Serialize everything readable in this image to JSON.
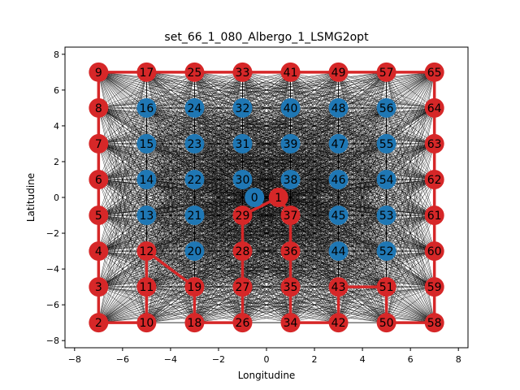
{
  "chart_data": {
    "type": "scatter",
    "title": "set_66_1_080_Albergo_1_LSMG2opt",
    "xlabel": "Longitudine",
    "ylabel": "Latitudine",
    "xlim": [
      -8.4,
      8.4
    ],
    "ylim": [
      -8.4,
      8.4
    ],
    "xticks": [
      -8,
      -6,
      -4,
      -2,
      0,
      2,
      4,
      6,
      8
    ],
    "yticks": [
      -8,
      -6,
      -4,
      -2,
      0,
      2,
      4,
      6,
      8
    ],
    "grid": false,
    "colors": {
      "unvisited_node": "#1f77b4",
      "route": "#d62728",
      "complete_edges": "#000000"
    },
    "nodes": [
      {
        "id": 0,
        "x": -0.5,
        "y": 0
      },
      {
        "id": 1,
        "x": 0.5,
        "y": 0
      },
      {
        "id": 2,
        "x": -7,
        "y": -7
      },
      {
        "id": 3,
        "x": -7,
        "y": -5
      },
      {
        "id": 4,
        "x": -7,
        "y": -3
      },
      {
        "id": 5,
        "x": -7,
        "y": -1
      },
      {
        "id": 6,
        "x": -7,
        "y": 1
      },
      {
        "id": 7,
        "x": -7,
        "y": 3
      },
      {
        "id": 8,
        "x": -7,
        "y": 5
      },
      {
        "id": 9,
        "x": -7,
        "y": 7
      },
      {
        "id": 10,
        "x": -5,
        "y": -7
      },
      {
        "id": 11,
        "x": -5,
        "y": -5
      },
      {
        "id": 12,
        "x": -5,
        "y": -3
      },
      {
        "id": 13,
        "x": -5,
        "y": -1
      },
      {
        "id": 14,
        "x": -5,
        "y": 1
      },
      {
        "id": 15,
        "x": -5,
        "y": 3
      },
      {
        "id": 16,
        "x": -5,
        "y": 5
      },
      {
        "id": 17,
        "x": -5,
        "y": 7
      },
      {
        "id": 18,
        "x": -3,
        "y": -7
      },
      {
        "id": 19,
        "x": -3,
        "y": -5
      },
      {
        "id": 20,
        "x": -3,
        "y": -3
      },
      {
        "id": 21,
        "x": -3,
        "y": -1
      },
      {
        "id": 22,
        "x": -3,
        "y": 1
      },
      {
        "id": 23,
        "x": -3,
        "y": 3
      },
      {
        "id": 24,
        "x": -3,
        "y": 5
      },
      {
        "id": 25,
        "x": -3,
        "y": 7
      },
      {
        "id": 26,
        "x": -1,
        "y": -7
      },
      {
        "id": 27,
        "x": -1,
        "y": -5
      },
      {
        "id": 28,
        "x": -1,
        "y": -3
      },
      {
        "id": 29,
        "x": -1,
        "y": -1
      },
      {
        "id": 30,
        "x": -1,
        "y": 1
      },
      {
        "id": 31,
        "x": -1,
        "y": 3
      },
      {
        "id": 32,
        "x": -1,
        "y": 5
      },
      {
        "id": 33,
        "x": -1,
        "y": 7
      },
      {
        "id": 34,
        "x": 1,
        "y": -7
      },
      {
        "id": 35,
        "x": 1,
        "y": -5
      },
      {
        "id": 36,
        "x": 1,
        "y": -3
      },
      {
        "id": 37,
        "x": 1,
        "y": -1
      },
      {
        "id": 38,
        "x": 1,
        "y": 1
      },
      {
        "id": 39,
        "x": 1,
        "y": 3
      },
      {
        "id": 40,
        "x": 1,
        "y": 5
      },
      {
        "id": 41,
        "x": 1,
        "y": 7
      },
      {
        "id": 42,
        "x": 3,
        "y": -7
      },
      {
        "id": 43,
        "x": 3,
        "y": -5
      },
      {
        "id": 44,
        "x": 3,
        "y": -3
      },
      {
        "id": 45,
        "x": 3,
        "y": -1
      },
      {
        "id": 46,
        "x": 3,
        "y": 1
      },
      {
        "id": 47,
        "x": 3,
        "y": 3
      },
      {
        "id": 48,
        "x": 3,
        "y": 5
      },
      {
        "id": 49,
        "x": 3,
        "y": 7
      },
      {
        "id": 50,
        "x": 5,
        "y": -7
      },
      {
        "id": 51,
        "x": 5,
        "y": -5
      },
      {
        "id": 52,
        "x": 5,
        "y": -3
      },
      {
        "id": 53,
        "x": 5,
        "y": -1
      },
      {
        "id": 54,
        "x": 5,
        "y": 1
      },
      {
        "id": 55,
        "x": 5,
        "y": 3
      },
      {
        "id": 56,
        "x": 5,
        "y": 5
      },
      {
        "id": 57,
        "x": 5,
        "y": 7
      },
      {
        "id": 58,
        "x": 7,
        "y": -7
      },
      {
        "id": 59,
        "x": 7,
        "y": -5
      },
      {
        "id": 60,
        "x": 7,
        "y": -3
      },
      {
        "id": 61,
        "x": 7,
        "y": -1
      },
      {
        "id": 62,
        "x": 7,
        "y": 1
      },
      {
        "id": 63,
        "x": 7,
        "y": 3
      },
      {
        "id": 64,
        "x": 7,
        "y": 5
      },
      {
        "id": 65,
        "x": 7,
        "y": 7
      }
    ],
    "route": [
      1,
      29,
      28,
      27,
      26,
      18,
      19,
      12,
      11,
      10,
      2,
      3,
      4,
      5,
      6,
      7,
      8,
      9,
      17,
      25,
      33,
      41,
      49,
      57,
      65,
      64,
      63,
      62,
      61,
      60,
      59,
      58,
      50,
      51,
      43,
      42,
      34,
      35,
      36,
      37,
      1
    ]
  }
}
